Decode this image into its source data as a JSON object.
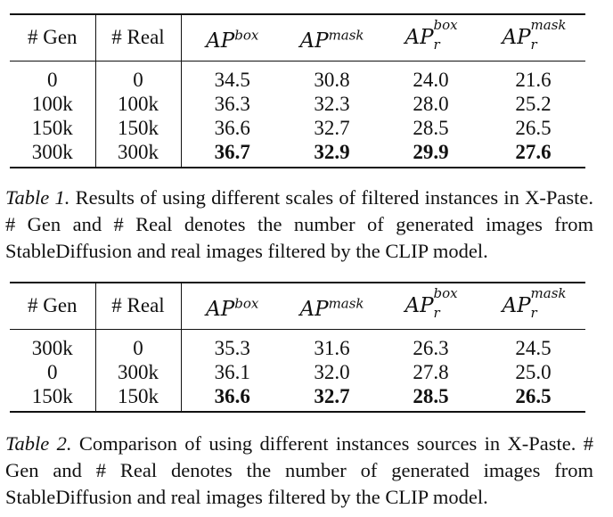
{
  "table1": {
    "headers": {
      "gen": "# Gen",
      "real": "# Real",
      "ap_base": "AP",
      "box_sup": "box",
      "mask_sup": "mask",
      "r_sub": "r"
    },
    "rows": [
      {
        "gen": "0",
        "real": "0",
        "ap_box": "34.5",
        "ap_mask": "30.8",
        "apr_box": "24.0",
        "apr_mask": "21.6"
      },
      {
        "gen": "100k",
        "real": "100k",
        "ap_box": "36.3",
        "ap_mask": "32.3",
        "apr_box": "28.0",
        "apr_mask": "25.2"
      },
      {
        "gen": "150k",
        "real": "150k",
        "ap_box": "36.6",
        "ap_mask": "32.7",
        "apr_box": "28.5",
        "apr_mask": "26.5"
      },
      {
        "gen": "300k",
        "real": "300k",
        "ap_box": "36.7",
        "ap_mask": "32.9",
        "apr_box": "29.9",
        "apr_mask": "27.6"
      }
    ],
    "caption_label": "Table 1.",
    "caption_text": " Results of using different scales of filtered instances in X-Paste. # Gen and # Real denotes the number of generated images from StableDiffusion and real images filtered by the CLIP model."
  },
  "table2": {
    "headers": {
      "gen": "# Gen",
      "real": "# Real",
      "ap_base": "AP",
      "box_sup": "box",
      "mask_sup": "mask",
      "r_sub": "r"
    },
    "rows": [
      {
        "gen": "300k",
        "real": "0",
        "ap_box": "35.3",
        "ap_mask": "31.6",
        "apr_box": "26.3",
        "apr_mask": "24.5"
      },
      {
        "gen": "0",
        "real": "300k",
        "ap_box": "36.1",
        "ap_mask": "32.0",
        "apr_box": "27.8",
        "apr_mask": "25.0"
      },
      {
        "gen": "150k",
        "real": "150k",
        "ap_box": "36.6",
        "ap_mask": "32.7",
        "apr_box": "28.5",
        "apr_mask": "26.5"
      }
    ],
    "caption_label": "Table 2.",
    "caption_text": " Comparison of using different instances sources in X-Paste. # Gen and # Real denotes the number of generated images from StableDiffusion and real images filtered by the CLIP model."
  }
}
